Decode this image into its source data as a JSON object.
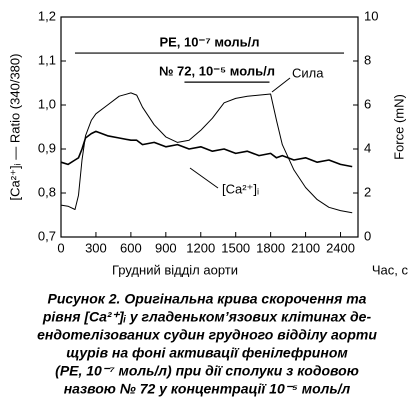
{
  "chart_data": {
    "type": "line",
    "xlabel": "Грудний відділ аорти",
    "xunit": "Час, с",
    "ylabel": "[Ca²⁺]ᵢ — Ratio (340/380)",
    "y2label": "Force (mN)",
    "xlim": [
      0,
      2550
    ],
    "xticks": [
      0,
      300,
      600,
      900,
      1200,
      1500,
      1800,
      2100,
      2400
    ],
    "ylim": [
      0.7,
      1.2
    ],
    "yticks": [
      {
        "value": 0.7,
        "label": "0,7"
      },
      {
        "value": 0.8,
        "label": "0,8"
      },
      {
        "value": 0.9,
        "label": "0,9"
      },
      {
        "value": 1.0,
        "label": "1,0"
      },
      {
        "value": 1.1,
        "label": "1,1"
      },
      {
        "value": 1.2,
        "label": "1,2"
      }
    ],
    "y2lim": [
      0,
      10
    ],
    "y2ticks": [
      0,
      2,
      4,
      6,
      8,
      10
    ],
    "x": [
      0,
      60,
      120,
      150,
      180,
      210,
      260,
      300,
      400,
      500,
      600,
      650,
      700,
      800,
      900,
      1000,
      1100,
      1200,
      1300,
      1400,
      1500,
      1600,
      1700,
      1800,
      1850,
      1900,
      2000,
      2100,
      2200,
      2300,
      2400,
      2500
    ],
    "series": [
      {
        "name": "[Ca²⁺]ᵢ",
        "color": "#000000",
        "values": [
          0.87,
          0.865,
          0.875,
          0.88,
          0.9,
          0.925,
          0.935,
          0.94,
          0.93,
          0.925,
          0.92,
          0.92,
          0.91,
          0.915,
          0.905,
          0.91,
          0.9,
          0.905,
          0.895,
          0.9,
          0.89,
          0.895,
          0.885,
          0.89,
          0.88,
          0.885,
          0.875,
          0.88,
          0.87,
          0.875,
          0.865,
          0.86
        ]
      },
      {
        "name": "Сила",
        "color": "#000000",
        "axis": "y2",
        "values": [
          1.45,
          1.4,
          1.25,
          1.9,
          3.5,
          4.6,
          5.3,
          5.6,
          6.0,
          6.4,
          6.55,
          6.45,
          5.9,
          5.1,
          4.55,
          4.3,
          4.4,
          4.85,
          5.4,
          6.1,
          6.3,
          6.4,
          6.45,
          6.5,
          5.3,
          4.2,
          3.05,
          2.25,
          1.7,
          1.35,
          1.2,
          1.1
        ]
      }
    ],
    "annotations": [
      {
        "text": "PE, 10⁻⁷ моль/л",
        "x": [
          120,
          2430
        ],
        "y": 1.118
      },
      {
        "text": "№ 72, 10⁻⁵ моль/л",
        "x": [
          1060,
          1790
        ],
        "y": 1.052
      }
    ],
    "caption": [
      "Рисунок 2. Оригінальна крива скорочення та",
      "рівня [Ca²⁺]ᵢ у гладеньком’язових клітинах де-",
      "ендотелізованих судин грудного відділу аорти",
      "щурів на фоні активації фенілефрином",
      "(PE, 10⁻⁷ моль/л) при дії сполуки з кодовою",
      "назвою № 72 у концентрації 10⁻⁵ моль/л"
    ]
  }
}
